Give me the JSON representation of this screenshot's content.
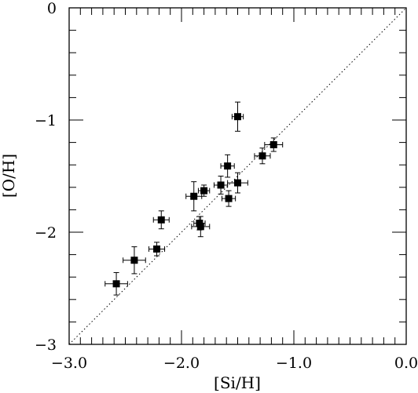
{
  "chart_data": {
    "type": "scatter",
    "xlabel": "[Si/H]",
    "ylabel": "[O/H]",
    "xlim": [
      -3.0,
      0.0
    ],
    "ylim": [
      -3.0,
      0.0
    ],
    "x_ticks": [
      -3.0,
      -2.0,
      -1.0,
      0.0
    ],
    "x_tick_labels": [
      "−3.0",
      "−2.0",
      "−1.0",
      "0.0"
    ],
    "y_ticks": [
      -3,
      -2,
      -1,
      0
    ],
    "y_tick_labels": [
      "−3",
      "−2",
      "−1",
      "0"
    ],
    "grid": false,
    "reference_line": {
      "style": "dotted",
      "from": [
        -3.0,
        -3.0
      ],
      "to": [
        0.0,
        0.0
      ]
    },
    "points": [
      {
        "x": -2.58,
        "y": -2.46,
        "xerr": 0.1,
        "yerr": 0.1
      },
      {
        "x": -2.42,
        "y": -2.25,
        "xerr": 0.1,
        "yerr": 0.12
      },
      {
        "x": -2.22,
        "y": -2.15,
        "xerr": 0.07,
        "yerr": 0.06
      },
      {
        "x": -2.18,
        "y": -1.89,
        "xerr": 0.07,
        "yerr": 0.08
      },
      {
        "x": -1.89,
        "y": -1.68,
        "xerr": 0.07,
        "yerr": 0.13
      },
      {
        "x": -1.8,
        "y": -1.63,
        "xerr": 0.05,
        "yerr": 0.05
      },
      {
        "x": -1.84,
        "y": -1.92,
        "xerr": 0.05,
        "yerr": 0.06
      },
      {
        "x": -1.83,
        "y": -1.95,
        "xerr": 0.08,
        "yerr": 0.09
      },
      {
        "x": -1.65,
        "y": -1.58,
        "xerr": 0.06,
        "yerr": 0.08
      },
      {
        "x": -1.59,
        "y": -1.41,
        "xerr": 0.06,
        "yerr": 0.1
      },
      {
        "x": -1.58,
        "y": -1.7,
        "xerr": 0.06,
        "yerr": 0.07
      },
      {
        "x": -1.5,
        "y": -1.56,
        "xerr": 0.09,
        "yerr": 0.09
      },
      {
        "x": -1.5,
        "y": -0.97,
        "xerr": 0.05,
        "yerr": 0.13
      },
      {
        "x": -1.28,
        "y": -1.32,
        "xerr": 0.07,
        "yerr": 0.07
      },
      {
        "x": -1.18,
        "y": -1.22,
        "xerr": 0.08,
        "yerr": 0.06
      }
    ]
  }
}
